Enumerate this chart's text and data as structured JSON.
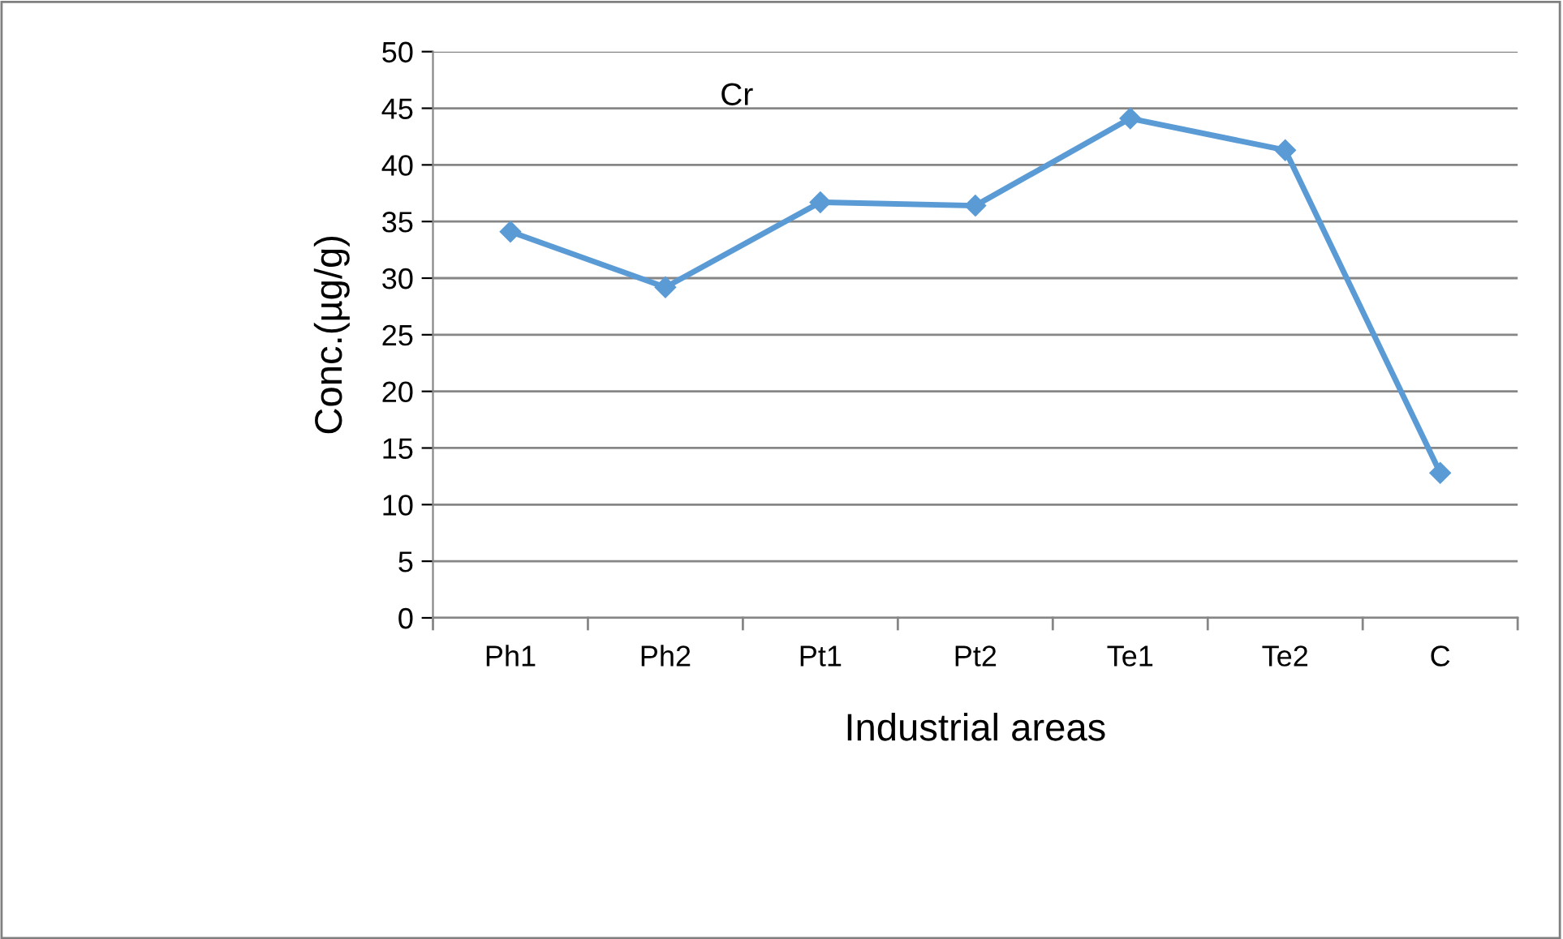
{
  "chart_data": {
    "type": "line",
    "title": "Cr",
    "xlabel": "Industrial areas",
    "ylabel": "Conc.(µg/g)",
    "categories": [
      "Ph1",
      "Ph2",
      "Pt1",
      "Pt2",
      "Te1",
      "Te2",
      "C"
    ],
    "series": [
      {
        "color": "#5b9bd5",
        "values": [
          34.1,
          29.2,
          36.7,
          36.4,
          44.1,
          41.3,
          12.8
        ]
      }
    ],
    "ylim": [
      0,
      50
    ],
    "yticks": [
      0,
      5,
      10,
      15,
      20,
      25,
      30,
      35,
      40,
      45,
      50
    ],
    "grid": "y",
    "legend": false,
    "marker": "diamond",
    "line_style": "solid"
  }
}
